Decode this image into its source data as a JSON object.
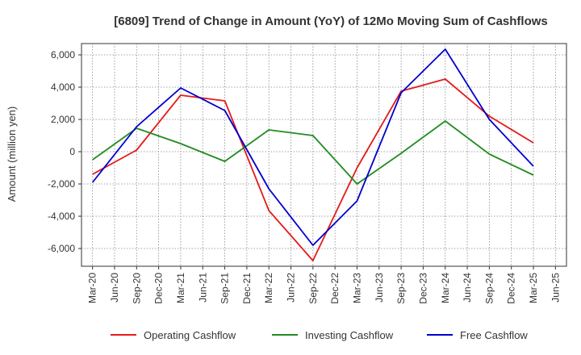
{
  "chart_data": {
    "type": "line",
    "title": "[6809]  Trend of Change in Amount (YoY) of 12Mo Moving Sum of Cashflows",
    "xlabel": "",
    "ylabel": "Amount (million yen)",
    "ylim": [
      -7100,
      6700
    ],
    "yticks": [
      6000,
      4000,
      2000,
      0,
      -2000,
      -4000,
      -6000
    ],
    "ytick_labels": [
      "6,000",
      "4,000",
      "2,000",
      "0",
      "-2,000",
      "-4,000",
      "-6,000"
    ],
    "categories": [
      "Mar-20",
      "Jun-20",
      "Sep-20",
      "Dec-20",
      "Mar-21",
      "Jun-21",
      "Sep-21",
      "Dec-21",
      "Mar-22",
      "Jun-22",
      "Sep-22",
      "Dec-22",
      "Mar-23",
      "Jun-23",
      "Sep-23",
      "Dec-23",
      "Mar-24",
      "Jun-24",
      "Sep-24",
      "Dec-24",
      "Mar-25",
      "Jun-25"
    ],
    "grid": true,
    "legend_position": "bottom",
    "series": [
      {
        "name": "Operating Cashflow",
        "color": "#e31a1c",
        "values": [
          -1400,
          null,
          100,
          null,
          3500,
          null,
          3150,
          null,
          -3650,
          null,
          -6750,
          null,
          -1000,
          null,
          3750,
          null,
          4500,
          null,
          2200,
          null,
          550,
          null
        ]
      },
      {
        "name": "Investing Cashflow",
        "color": "#228b22",
        "values": [
          -500,
          null,
          1450,
          null,
          500,
          null,
          -600,
          null,
          1350,
          null,
          1000,
          null,
          -2000,
          null,
          -100,
          null,
          1900,
          null,
          -150,
          null,
          -1450,
          null
        ]
      },
      {
        "name": "Free Cashflow",
        "color": "#0000cd",
        "values": [
          -1900,
          null,
          1550,
          null,
          3950,
          null,
          2550,
          null,
          -2300,
          null,
          -5800,
          null,
          -3050,
          null,
          3650,
          null,
          6350,
          null,
          2000,
          null,
          -900,
          null
        ]
      }
    ]
  }
}
